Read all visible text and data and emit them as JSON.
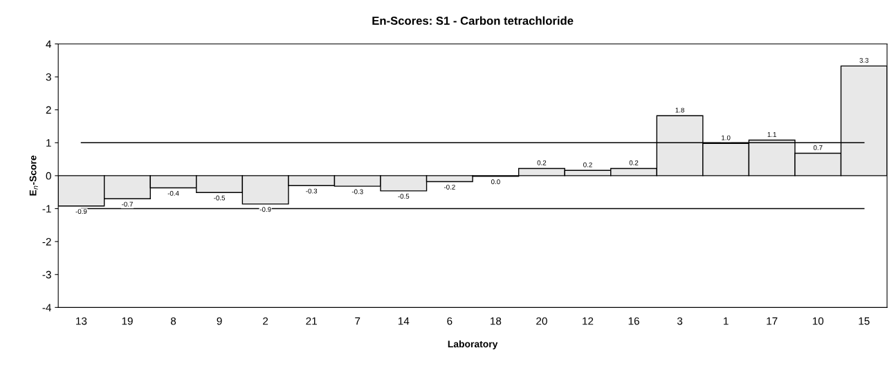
{
  "chart_data": {
    "type": "bar",
    "title": "En-Scores: S1 - Carbon tetrachloride",
    "xlabel": "Laboratory",
    "ylabel": "E$_{n}$-Score",
    "categories": [
      "13",
      "19",
      "8",
      "9",
      "2",
      "21",
      "7",
      "14",
      "6",
      "18",
      "20",
      "12",
      "16",
      "3",
      "1",
      "17",
      "10",
      "15"
    ],
    "values": [
      -0.92,
      -0.7,
      -0.37,
      -0.51,
      -0.86,
      -0.3,
      -0.32,
      -0.46,
      -0.18,
      -0.02,
      0.22,
      0.16,
      0.22,
      1.82,
      0.98,
      1.08,
      0.68,
      3.33
    ],
    "value_labels": [
      "-0.9",
      "-0.7",
      "-0.4",
      "-0.5",
      "-0.9",
      "-0.3",
      "-0.3",
      "-0.5",
      "-0.2",
      "0.0",
      "0.2",
      "0.2",
      "0.2",
      "1.8",
      "1.0",
      "1.1",
      "0.7",
      "3.3"
    ],
    "color": "#e8e8e8",
    "ylim": [
      -4,
      4
    ],
    "yticks": [
      -4,
      -3,
      -2,
      -1,
      0,
      1,
      2,
      3,
      4
    ],
    "ref_lines": [
      {
        "axis": "y",
        "value": 1,
        "color": "#000000"
      },
      {
        "axis": "y",
        "value": -1,
        "color": "#000000"
      }
    ],
    "grid": false,
    "legend": false
  }
}
